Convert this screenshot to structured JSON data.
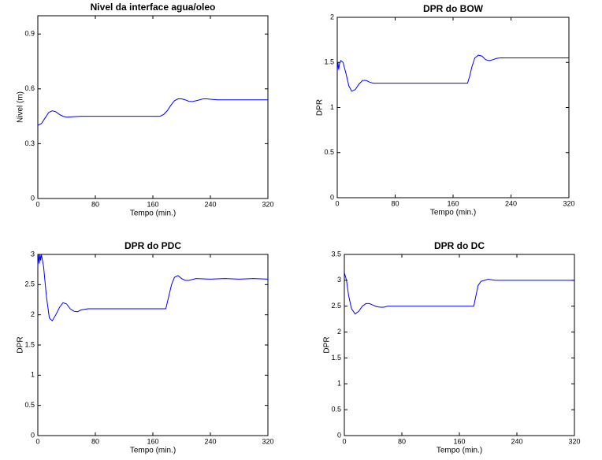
{
  "chart_data": [
    {
      "type": "line",
      "title": "Nivel da interface agua/oleo",
      "x_label": "Tempo (min.)",
      "y_label": "Nivel (m)",
      "xlim": [
        0,
        320
      ],
      "xticks": [
        0,
        80,
        160,
        240,
        320
      ],
      "ylim": [
        0,
        1
      ],
      "yticks": [
        0,
        0.3,
        0.6,
        0.9
      ],
      "color": "#0000ff",
      "x": [
        0,
        5,
        10,
        15,
        20,
        25,
        30,
        35,
        40,
        50,
        60,
        80,
        120,
        170,
        175,
        180,
        185,
        190,
        195,
        200,
        205,
        210,
        215,
        220,
        225,
        230,
        235,
        240,
        250,
        260,
        280,
        300,
        320
      ],
      "values": [
        0.4,
        0.41,
        0.44,
        0.47,
        0.48,
        0.475,
        0.46,
        0.45,
        0.445,
        0.448,
        0.45,
        0.45,
        0.45,
        0.45,
        0.46,
        0.48,
        0.51,
        0.535,
        0.545,
        0.545,
        0.54,
        0.532,
        0.53,
        0.535,
        0.54,
        0.545,
        0.545,
        0.543,
        0.54,
        0.54,
        0.54,
        0.54,
        0.54
      ]
    },
    {
      "type": "line",
      "title": "DPR do BOW",
      "x_label": "Tempo (min.)",
      "y_label": "DPR",
      "xlim": [
        0,
        320
      ],
      "xticks": [
        0,
        80,
        160,
        240,
        320
      ],
      "ylim": [
        0,
        2
      ],
      "yticks": [
        0,
        0.5,
        1,
        1.5,
        2
      ],
      "color": "#0000ff",
      "x": [
        0,
        1,
        2,
        3,
        5,
        8,
        12,
        16,
        20,
        25,
        30,
        35,
        40,
        45,
        50,
        55,
        60,
        80,
        120,
        180,
        183,
        186,
        190,
        195,
        200,
        205,
        210,
        215,
        220,
        225,
        230,
        260,
        320
      ],
      "values": [
        1.4,
        1.5,
        1.42,
        1.48,
        1.52,
        1.5,
        1.38,
        1.24,
        1.18,
        1.2,
        1.26,
        1.3,
        1.3,
        1.28,
        1.27,
        1.27,
        1.27,
        1.27,
        1.27,
        1.27,
        1.35,
        1.45,
        1.55,
        1.58,
        1.57,
        1.53,
        1.52,
        1.53,
        1.545,
        1.55,
        1.55,
        1.55,
        1.55
      ]
    },
    {
      "type": "line",
      "title": "DPR do PDC",
      "x_label": "Tempo (min.)",
      "y_label": "DPR",
      "xlim": [
        0,
        320
      ],
      "xticks": [
        0,
        80,
        160,
        240,
        320
      ],
      "ylim": [
        0,
        3
      ],
      "yticks": [
        0,
        0.5,
        1,
        1.5,
        2,
        2.5,
        3
      ],
      "color": "#0000ff",
      "x": [
        0,
        1,
        2,
        3,
        4,
        5,
        8,
        12,
        16,
        20,
        25,
        30,
        35,
        40,
        45,
        50,
        55,
        60,
        70,
        80,
        120,
        178,
        182,
        186,
        190,
        195,
        200,
        205,
        210,
        220,
        240,
        260,
        280,
        300,
        320
      ],
      "values": [
        2.8,
        3,
        2.85,
        3,
        2.9,
        3,
        2.8,
        2.3,
        1.95,
        1.9,
        2.0,
        2.12,
        2.2,
        2.18,
        2.1,
        2.06,
        2.05,
        2.08,
        2.1,
        2.1,
        2.1,
        2.1,
        2.3,
        2.5,
        2.62,
        2.65,
        2.6,
        2.57,
        2.57,
        2.6,
        2.59,
        2.6,
        2.59,
        2.6,
        2.59
      ]
    },
    {
      "type": "line",
      "title": "DPR do DC",
      "x_label": "Tempo (min.)",
      "y_label": "DPR",
      "xlim": [
        0,
        320
      ],
      "xticks": [
        0,
        80,
        160,
        240,
        320
      ],
      "ylim": [
        0,
        3.5
      ],
      "yticks": [
        0,
        0.5,
        1,
        1.5,
        2,
        2.5,
        3,
        3.5
      ],
      "color": "#0000ff",
      "x": [
        0,
        3,
        6,
        10,
        15,
        20,
        25,
        30,
        35,
        40,
        45,
        50,
        55,
        60,
        80,
        120,
        180,
        183,
        186,
        190,
        195,
        200,
        210,
        220,
        260,
        320
      ],
      "values": [
        3.15,
        3.0,
        2.7,
        2.45,
        2.35,
        2.4,
        2.5,
        2.55,
        2.55,
        2.52,
        2.49,
        2.48,
        2.48,
        2.5,
        2.5,
        2.5,
        2.5,
        2.7,
        2.9,
        2.98,
        3.0,
        3.02,
        3.0,
        3.0,
        3.0,
        3.0
      ]
    }
  ]
}
